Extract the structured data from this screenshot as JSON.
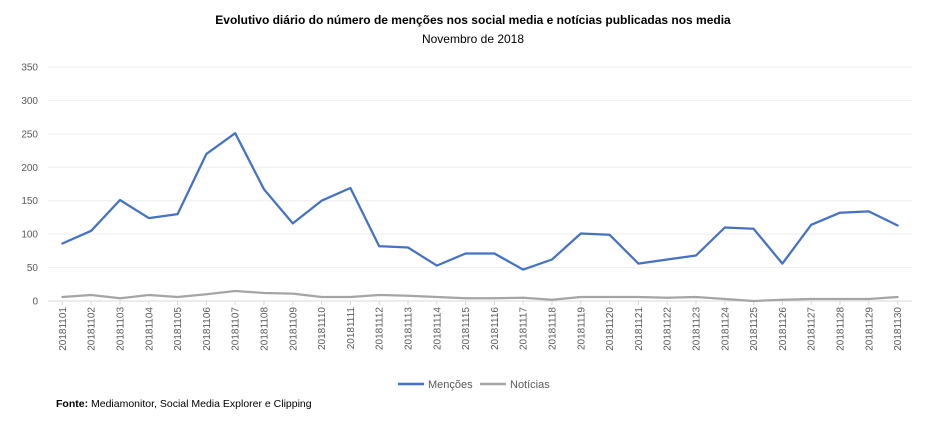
{
  "chart_data": {
    "type": "line",
    "title": "Evolutivo diário do número de menções nos social media e notícias publicadas nos media",
    "subtitle": "Novembro de 2018",
    "xlabel": "",
    "ylabel": "",
    "ylim": [
      0,
      350
    ],
    "yticks": [
      0,
      50,
      100,
      150,
      200,
      250,
      300,
      350
    ],
    "grid": true,
    "legend_position": "bottom",
    "categories": [
      "20181101",
      "20181102",
      "20181103",
      "20181104",
      "20181105",
      "20181106",
      "20181107",
      "20181108",
      "20181109",
      "20181110",
      "20181111",
      "20181112",
      "20181113",
      "20181114",
      "20181115",
      "20181116",
      "20181117",
      "20181118",
      "20181119",
      "20181120",
      "20181121",
      "20181122",
      "20181123",
      "20181124",
      "20181125",
      "20181126",
      "20181127",
      "20181128",
      "20181129",
      "20181130"
    ],
    "series": [
      {
        "name": "Menções",
        "color": "#4472C4",
        "values": [
          86,
          105,
          151,
          124,
          130,
          220,
          251,
          167,
          116,
          150,
          169,
          82,
          80,
          53,
          71,
          71,
          47,
          62,
          101,
          99,
          56,
          62,
          68,
          110,
          108,
          56,
          114,
          132,
          134,
          113
        ]
      },
      {
        "name": "Notícias",
        "color": "#A5A5A5",
        "values": [
          6,
          9,
          4,
          9,
          6,
          10,
          15,
          12,
          11,
          6,
          6,
          9,
          8,
          6,
          4,
          4,
          5,
          2,
          6,
          6,
          6,
          5,
          6,
          3,
          0,
          2,
          3,
          3,
          3,
          6
        ]
      }
    ]
  },
  "footer": {
    "source_label": "Fonte:",
    "source_text": "Mediamonitor, Social Media Explorer e Clipping"
  }
}
